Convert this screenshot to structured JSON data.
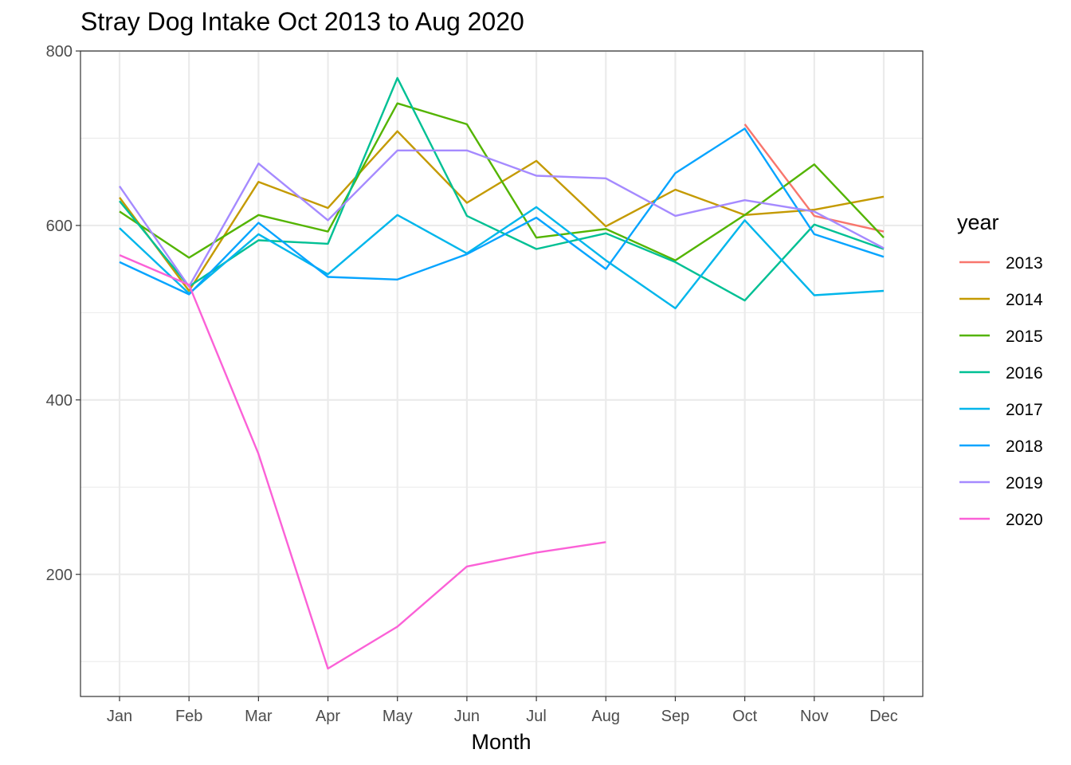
{
  "chart_data": {
    "type": "line",
    "title": "Stray Dog Intake Oct 2013 to Aug 2020",
    "xlabel": "Month",
    "ylabel": "",
    "categories": [
      "Jan",
      "Feb",
      "Mar",
      "Apr",
      "May",
      "Jun",
      "Jul",
      "Aug",
      "Sep",
      "Oct",
      "Nov",
      "Dec"
    ],
    "ylim": [
      60,
      800
    ],
    "yticks": [
      200,
      400,
      600,
      800
    ],
    "ytick_labels": [
      "200",
      "400",
      "600",
      "800"
    ],
    "grid": true,
    "legend_title": "year",
    "legend_position": "right",
    "series": [
      {
        "name": "2013",
        "color": "#F8766D",
        "values": [
          null,
          null,
          null,
          null,
          null,
          null,
          null,
          null,
          null,
          716,
          611,
          593
        ]
      },
      {
        "name": "2014",
        "color": "#C49A00",
        "values": [
          632,
          525,
          650,
          620,
          708,
          626,
          674,
          599,
          641,
          612,
          618,
          633
        ]
      },
      {
        "name": "2015",
        "color": "#53B400",
        "values": [
          616,
          563,
          612,
          593,
          740,
          716,
          586,
          596,
          560,
          612,
          670,
          586
        ]
      },
      {
        "name": "2016",
        "color": "#00C094",
        "values": [
          628,
          530,
          583,
          579,
          769,
          611,
          573,
          591,
          558,
          514,
          601,
          573
        ]
      },
      {
        "name": "2017",
        "color": "#00B6EB",
        "values": [
          597,
          522,
          590,
          544,
          612,
          568,
          621,
          560,
          505,
          606,
          520,
          525
        ]
      },
      {
        "name": "2018",
        "color": "#06A4FF",
        "values": [
          558,
          521,
          603,
          541,
          538,
          567,
          609,
          550,
          660,
          711,
          590,
          564
        ]
      },
      {
        "name": "2019",
        "color": "#A58AFF",
        "values": [
          645,
          530,
          671,
          606,
          686,
          686,
          657,
          654,
          611,
          629,
          616,
          574
        ]
      },
      {
        "name": "2020",
        "color": "#FB61D7",
        "values": [
          566,
          532,
          338,
          92,
          140,
          209,
          225,
          237,
          null,
          null,
          null,
          null
        ]
      }
    ]
  }
}
